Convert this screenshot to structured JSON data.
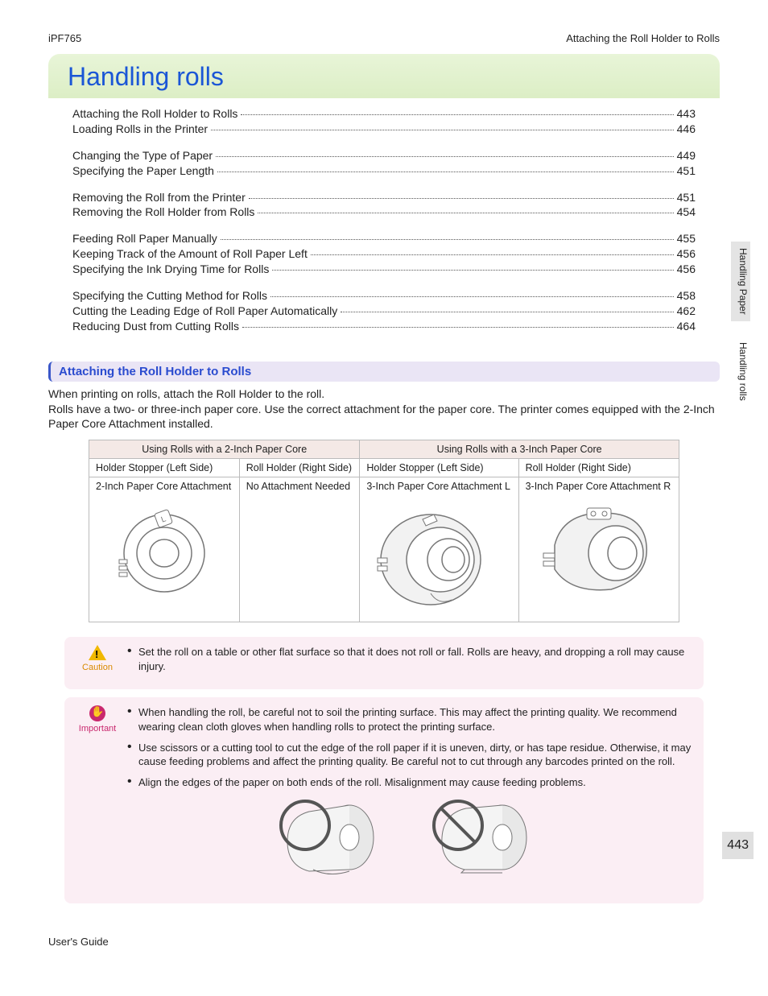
{
  "header": {
    "left": "iPF765",
    "right": "Attaching the Roll Holder to Rolls"
  },
  "title": "Handling rolls",
  "toc": [
    [
      {
        "t": "Attaching the Roll Holder to Rolls",
        "p": "443"
      },
      {
        "t": "Loading Rolls in the Printer",
        "p": "446"
      }
    ],
    [
      {
        "t": "Changing the Type of Paper",
        "p": "449"
      },
      {
        "t": "Specifying the Paper Length",
        "p": "451"
      }
    ],
    [
      {
        "t": "Removing the Roll from the Printer",
        "p": "451"
      },
      {
        "t": "Removing the Roll Holder from Rolls",
        "p": "454"
      }
    ],
    [
      {
        "t": "Feeding Roll Paper Manually",
        "p": "455"
      },
      {
        "t": "Keeping Track of the Amount of Roll Paper Left",
        "p": "456"
      },
      {
        "t": "Specifying the Ink Drying Time for Rolls",
        "p": "456"
      }
    ],
    [
      {
        "t": "Specifying the Cutting Method for Rolls",
        "p": "458"
      },
      {
        "t": "Cutting the Leading Edge of Roll Paper Automatically",
        "p": "462"
      },
      {
        "t": "Reducing Dust from Cutting Rolls",
        "p": "464"
      }
    ]
  ],
  "section_heading": "Attaching the Roll Holder to Rolls",
  "intro_lines": [
    "When printing on rolls, attach the Roll Holder to the roll.",
    "Rolls have a two- or three-inch paper core. Use the correct attachment for the paper core. The printer comes equipped with the 2-Inch Paper Core Attachment installed."
  ],
  "table": {
    "head2": "Using Rolls with a 2-Inch Paper Core",
    "head3": "Using Rolls with a 3-Inch Paper Core",
    "sub": {
      "a": "Holder Stopper (Left Side)",
      "b": "Roll Holder (Right Side)",
      "c": "Holder Stopper (Left Side)",
      "d": "Roll Holder (Right Side)"
    },
    "row": {
      "a": "2-Inch Paper Core Attachment",
      "b": "No Attachment Needed",
      "c": "3-Inch Paper Core Attachment L",
      "d": "3-Inch Paper Core Attachment R"
    }
  },
  "caution": {
    "label": "Caution",
    "items": [
      "Set the roll on a table or other flat surface so that it does not roll or fall. Rolls are heavy, and dropping a roll may cause injury."
    ]
  },
  "important": {
    "label": "Important",
    "items": [
      "When handling the roll, be careful not to soil the printing surface. This may affect the printing quality. We recommend wearing clean cloth gloves when handling rolls to protect the printing surface.",
      "Use scissors or a cutting tool to cut the edge of the roll paper if it is uneven, dirty, or has tape residue. Otherwise, it may cause feeding problems and affect the printing quality. Be careful not to cut through any barcodes printed on the roll.",
      "Align the edges of the paper on both ends of the roll. Misalignment may cause feeding problems."
    ]
  },
  "side_tabs": {
    "a": "Handling Paper",
    "b": "Handling rolls"
  },
  "page_number": "443",
  "footer": {
    "left": "User's Guide",
    "right": ""
  },
  "colors": {
    "link": "#1a56d6",
    "banner_top": "#e8f5d8",
    "banner_bottom": "#dceec5",
    "section_bg": "#eae5f5",
    "section_border": "#3a57c9",
    "table_head": "#f4e9e6",
    "note_bg": "#fbeef4",
    "caution_icon": "#f0b800",
    "important_icon": "#c9286e"
  }
}
